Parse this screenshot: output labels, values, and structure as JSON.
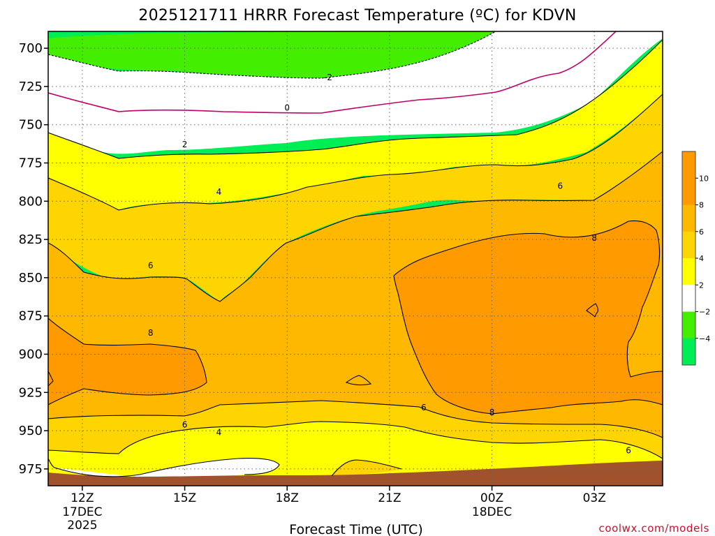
{
  "colors": {
    "cool_green": "#00ee55",
    "green": "#44ee00",
    "white": "#ffffff",
    "yellow": "#ffff00",
    "gold": "#ffd500",
    "orange": "#ffb800",
    "dark_orange": "#ff9a00",
    "ground": "#a0522d",
    "freezing_line": "#c0006a",
    "contour": "#000000",
    "credit": "#c8102e"
  },
  "chart_data": {
    "type": "heatmap",
    "title": "2025121711 HRRR Forecast Temperature (ºC) for KDVN",
    "xlabel": "Forecast Time (UTC)",
    "ylabel": "",
    "credit": "coolwx.com/models",
    "x_ticks": [
      {
        "label": "12Z",
        "sub": [
          "17DEC",
          "2025"
        ]
      },
      {
        "label": "15Z",
        "sub": []
      },
      {
        "label": "18Z",
        "sub": []
      },
      {
        "label": "21Z",
        "sub": []
      },
      {
        "label": "00Z",
        "sub": [
          "18DEC"
        ]
      },
      {
        "label": "03Z",
        "sub": []
      }
    ],
    "y_ticks": [
      "700",
      "725",
      "750",
      "775",
      "800",
      "825",
      "850",
      "875",
      "900",
      "925",
      "950",
      "975"
    ],
    "pressure_range_hpa": [
      689,
      986
    ],
    "time_range_hours_from_12z": [
      -1,
      17
    ],
    "grid": true,
    "colorbar": {
      "ticks": [
        "10",
        "8",
        "6",
        "4",
        "2",
        "−2",
        "−4"
      ],
      "bands": [
        "dark_orange",
        "dark_orange",
        "orange",
        "gold",
        "yellow",
        "white",
        "green",
        "cool_green"
      ]
    },
    "contour_labels": [
      {
        "text": "-2",
        "hour": 7.2,
        "pressure": 719
      },
      {
        "text": "0",
        "hour": 6,
        "pressure": 739
      },
      {
        "text": "2",
        "hour": 3,
        "pressure": 763
      },
      {
        "text": "4",
        "hour": 4,
        "pressure": 794
      },
      {
        "text": "6",
        "hour": 14,
        "pressure": 790
      },
      {
        "text": "8",
        "hour": 15,
        "pressure": 824
      },
      {
        "text": "6",
        "hour": 2,
        "pressure": 842
      },
      {
        "text": "8",
        "hour": 2,
        "pressure": 886
      },
      {
        "text": "6",
        "hour": 10,
        "pressure": 935
      },
      {
        "text": "6",
        "hour": 3,
        "pressure": 946
      },
      {
        "text": "4",
        "hour": 4,
        "pressure": 951
      },
      {
        "text": "8",
        "hour": 12,
        "pressure": 938
      },
      {
        "text": "6",
        "hour": 16,
        "pressure": 963
      }
    ]
  }
}
